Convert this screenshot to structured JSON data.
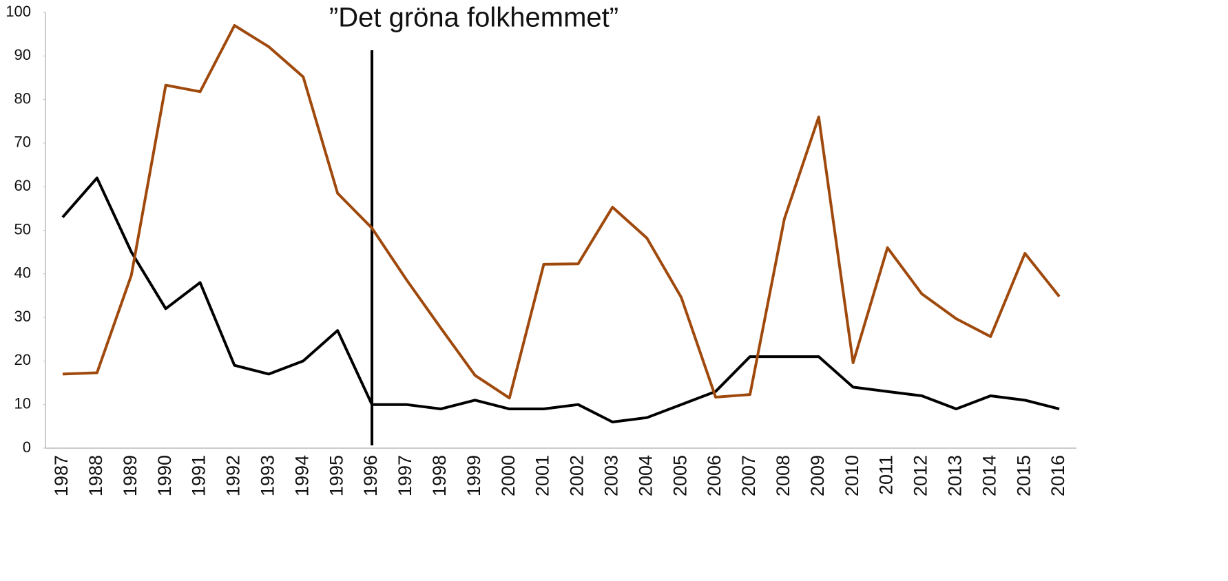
{
  "chart_data": {
    "type": "line",
    "annotation": {
      "text": "”Det gröna folkhemmet”",
      "x": "1996"
    },
    "categories": [
      "1987",
      "1988",
      "1989",
      "1990",
      "1991",
      "1992",
      "1993",
      "1994",
      "1995",
      "1996",
      "1997",
      "1998",
      "1999",
      "2000",
      "2001",
      "2002",
      "2003",
      "2004",
      "2005",
      "2006",
      "2007",
      "2008",
      "2009",
      "2010",
      "2011",
      "2012",
      "2013",
      "2014",
      "2015",
      "2016"
    ],
    "series": [
      {
        "color": "#000000",
        "values": [
          53,
          62,
          45,
          32,
          38,
          19,
          17,
          20,
          27,
          10,
          10,
          9,
          11,
          9,
          9,
          10,
          6,
          7,
          10,
          13,
          21,
          21,
          21,
          14,
          13,
          12,
          9,
          12,
          11,
          9
        ]
      },
      {
        "color": "#a0490d",
        "values": [
          17,
          17.3,
          39.7,
          83.3,
          81.8,
          97,
          92.1,
          85.2,
          58.5,
          50.5,
          38.7,
          27.6,
          16.7,
          11.5,
          42.2,
          42.3,
          55.3,
          48.2,
          34.6,
          11.7,
          12.3,
          52.6,
          76,
          19.6,
          46,
          35.4,
          29.7,
          25.6,
          44.7,
          34.8
        ]
      }
    ],
    "ylim": [
      0,
      100
    ],
    "yticks": [
      0,
      10,
      20,
      30,
      40,
      50,
      60,
      70,
      80,
      90,
      100
    ],
    "grid": false
  }
}
